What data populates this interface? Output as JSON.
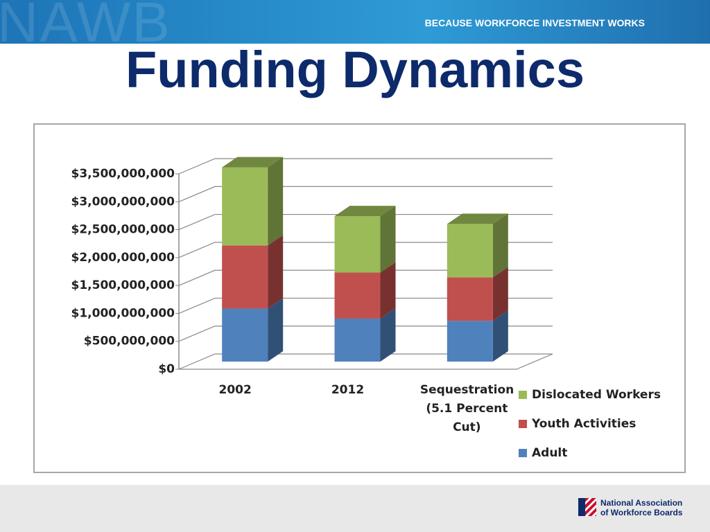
{
  "header": {
    "brand": "NAWB",
    "tagline": "BECAUSE WORKFORCE INVESTMENT WORKS"
  },
  "footer": {
    "logo_line1": "National Association",
    "logo_line2": "of Workforce Boards"
  },
  "chart_data": {
    "type": "bar",
    "stacked": true,
    "title": "Funding Dynamics",
    "categories": [
      "2002",
      "2012",
      "Sequestration (5.1 Percent Cut)"
    ],
    "series": [
      {
        "name": "Adult",
        "color": "#4f81bd",
        "values": [
          950000000,
          770000000,
          730000000
        ]
      },
      {
        "name": "Youth Activities",
        "color": "#c0504d",
        "values": [
          1130000000,
          825000000,
          780000000
        ]
      },
      {
        "name": "Dislocated Workers",
        "color": "#9bbb59",
        "values": [
          1400000000,
          1010000000,
          955000000
        ]
      }
    ],
    "ylim": [
      0,
      3500000000
    ],
    "yticks": [
      {
        "value": 0,
        "label": "$0"
      },
      {
        "value": 500000000,
        "label": "$500,000,000"
      },
      {
        "value": 1000000000,
        "label": "$1,000,000,000"
      },
      {
        "value": 1500000000,
        "label": "$1,500,000,000"
      },
      {
        "value": 2000000000,
        "label": "$2,000,000,000"
      },
      {
        "value": 2500000000,
        "label": "$2,500,000,000"
      },
      {
        "value": 3000000000,
        "label": "$3,000,000,000"
      },
      {
        "value": 3500000000,
        "label": "$3,500,000,000"
      }
    ],
    "grid": true,
    "legend": "bottom-right"
  }
}
